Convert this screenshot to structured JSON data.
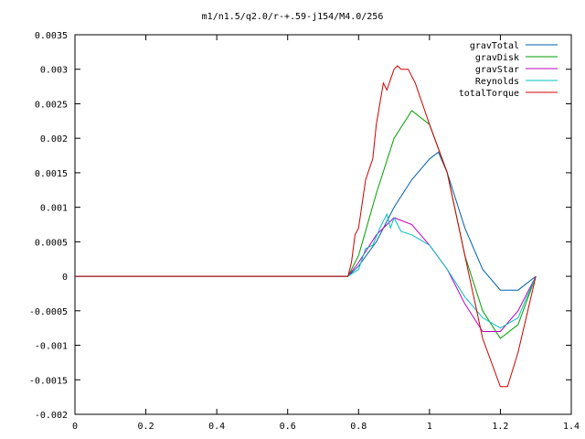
{
  "chart_data": {
    "type": "line",
    "title": "m1/n1.5/q2.0/r-+.59-j154/M4.0/256",
    "xlabel": "",
    "ylabel": "",
    "xlim": [
      0,
      1.4
    ],
    "ylim": [
      -0.002,
      0.0035
    ],
    "x_ticks": [
      "0",
      "0.2",
      "0.4",
      "0.6",
      "0.8",
      "1",
      "1.2",
      "1.4"
    ],
    "x_tick_values": [
      0,
      0.2,
      0.4,
      0.6,
      0.8,
      1.0,
      1.2,
      1.4
    ],
    "y_ticks": [
      "0.0035",
      "0.003",
      "0.0025",
      "0.002",
      "0.0015",
      "0.001",
      "0.0005",
      "0",
      "-0.0005",
      "-0.001",
      "-0.0015",
      "-0.002"
    ],
    "y_tick_values": [
      0.0035,
      0.003,
      0.0025,
      0.002,
      0.0015,
      0.001,
      0.0005,
      0,
      -0.0005,
      -0.001,
      -0.0015,
      -0.002
    ],
    "grid": false,
    "legend_position": "top-right",
    "series": [
      {
        "name": "gravTotal",
        "color": "#0060ad",
        "x": [
          0,
          0.77,
          0.8,
          0.85,
          0.9,
          0.95,
          1.0,
          1.025,
          1.05,
          1.1,
          1.15,
          1.2,
          1.25,
          1.3
        ],
        "y": [
          0,
          0,
          0.00015,
          0.0005,
          0.001,
          0.0014,
          0.0017,
          0.0018,
          0.0015,
          0.0007,
          0.0001,
          -0.0002,
          -0.0002,
          0
        ]
      },
      {
        "name": "gravDisk",
        "color": "#009e00",
        "x": [
          0,
          0.77,
          0.8,
          0.85,
          0.9,
          0.95,
          1.0,
          1.05,
          1.1,
          1.15,
          1.2,
          1.25,
          1.3
        ],
        "y": [
          0,
          0,
          0.0003,
          0.0012,
          0.002,
          0.0024,
          0.0022,
          0.0015,
          0.0003,
          -0.0005,
          -0.0009,
          -0.0007,
          0
        ]
      },
      {
        "name": "gravStar",
        "color": "#c000c0",
        "x": [
          0,
          0.77,
          0.8,
          0.85,
          0.9,
          0.95,
          1.0,
          1.05,
          1.1,
          1.15,
          1.2,
          1.25,
          1.3
        ],
        "y": [
          0,
          0,
          0.0002,
          0.0006,
          0.00085,
          0.00075,
          0.00045,
          0.0001,
          -0.0004,
          -0.0008,
          -0.0008,
          -0.0005,
          0
        ]
      },
      {
        "name": "Reynolds",
        "color": "#00c0c0",
        "x": [
          0,
          0.77,
          0.8,
          0.82,
          0.84,
          0.86,
          0.88,
          0.89,
          0.9,
          0.91,
          0.92,
          0.95,
          1.0,
          1.05,
          1.1,
          1.15,
          1.2,
          1.25,
          1.3
        ],
        "y": [
          0,
          0,
          0.0001,
          0.0004,
          0.00045,
          0.0007,
          0.0009,
          0.0007,
          0.00085,
          0.00075,
          0.00065,
          0.0006,
          0.00045,
          0.0001,
          -0.0003,
          -0.0006,
          -0.00075,
          -0.0006,
          0
        ]
      },
      {
        "name": "totalTorque",
        "color": "#d00000",
        "x": [
          0,
          0.77,
          0.78,
          0.79,
          0.8,
          0.82,
          0.84,
          0.85,
          0.87,
          0.88,
          0.9,
          0.91,
          0.92,
          0.94,
          0.96,
          1.0,
          1.05,
          1.1,
          1.15,
          1.2,
          1.22,
          1.25,
          1.3
        ],
        "y": [
          0,
          0,
          0.0002,
          0.0006,
          0.0007,
          0.0014,
          0.0017,
          0.0022,
          0.0028,
          0.0027,
          0.003,
          0.00305,
          0.003,
          0.003,
          0.0028,
          0.0022,
          0.0015,
          0.0003,
          -0.0009,
          -0.0016,
          -0.0016,
          -0.0011,
          0
        ]
      }
    ]
  }
}
